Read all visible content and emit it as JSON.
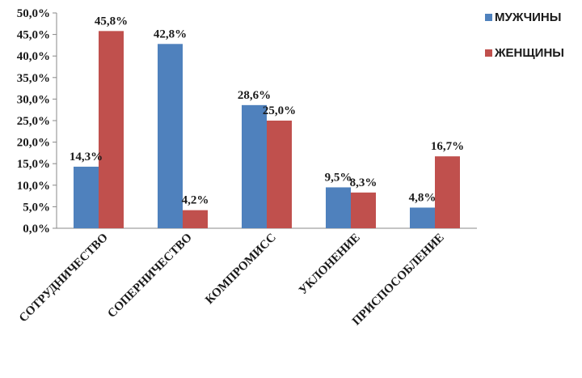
{
  "chart_data": {
    "type": "bar",
    "title": "",
    "xlabel": "",
    "ylabel": "",
    "ylim": [
      0,
      50
    ],
    "y_ticks": [
      "0,0%",
      "5,0%",
      "10,0%",
      "15,0%",
      "20,0%",
      "25,0%",
      "30,0%",
      "35,0%",
      "40,0%",
      "45,0%",
      "50,0%"
    ],
    "categories": [
      "СОТРУДНИЧЕСТВО",
      "СОПЕРНИЧЕСТВО",
      "КОМПРОМИСС",
      "УКЛОНЕНИЕ",
      "ПРИСПОСОБЛЕНИЕ"
    ],
    "series": [
      {
        "name": "МУЖЧИНЫ",
        "color": "#4f81bd",
        "values": [
          14.3,
          42.8,
          28.6,
          9.5,
          4.8
        ],
        "labels": [
          "14,3%",
          "42,8%",
          "28,6%",
          "9,5%",
          "4,8%"
        ]
      },
      {
        "name": "ЖЕНЩИНЫ",
        "color": "#c0504d",
        "values": [
          45.8,
          4.2,
          25.0,
          8.3,
          16.7
        ],
        "labels": [
          "45,8%",
          "4,2%",
          "25,0%",
          "8,3%",
          "16,7%"
        ]
      }
    ],
    "grid": false,
    "legend_position": "top-right"
  }
}
